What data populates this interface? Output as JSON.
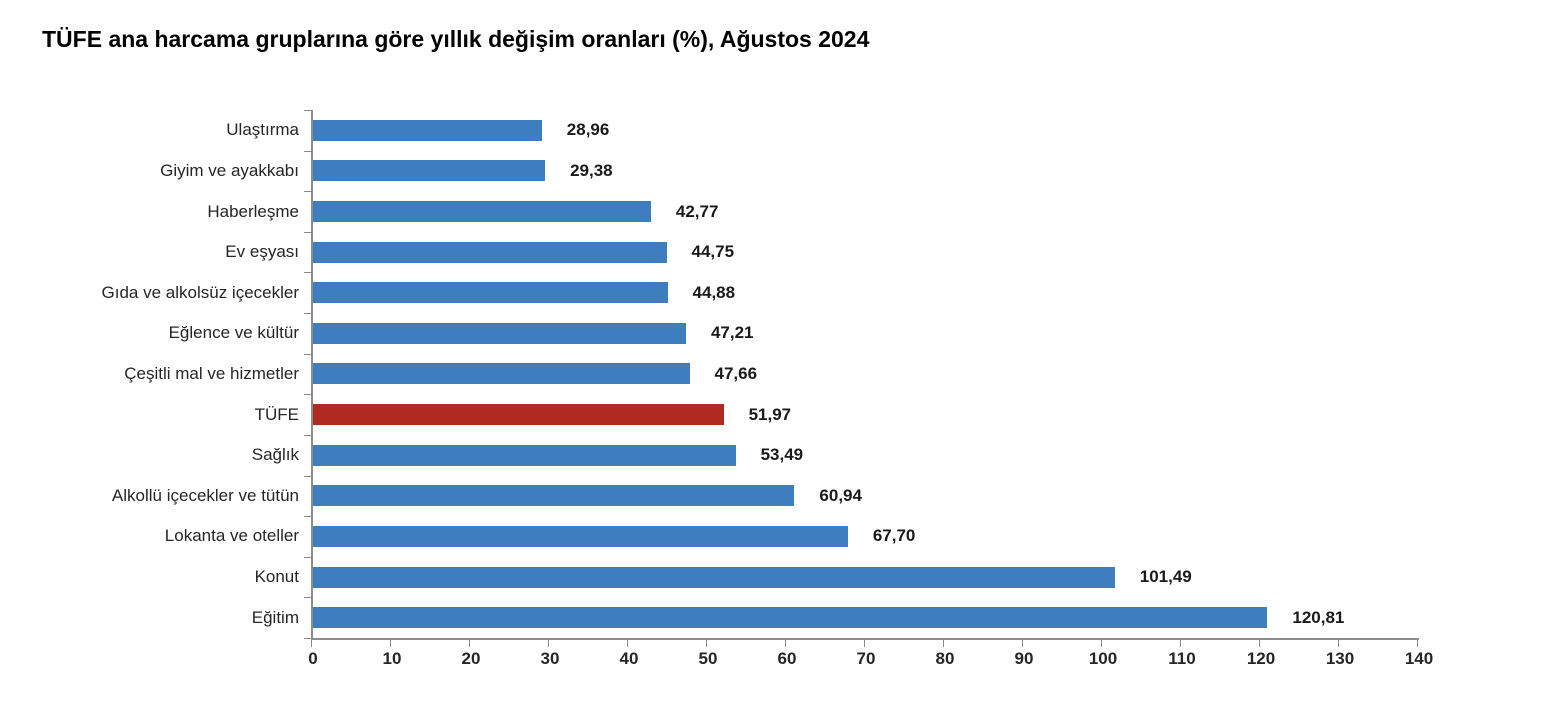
{
  "title": "TÜFE ana harcama gruplarına göre yıllık değişim oranları (%), Ağustos 2024",
  "chart_data": {
    "type": "bar",
    "orientation": "horizontal",
    "title": "TÜFE ana harcama gruplarına göre yıllık değişim oranları (%), Ağustos 2024",
    "categories": [
      "Ulaştırma",
      "Giyim ve ayakkabı",
      "Haberleşme",
      "Ev eşyası",
      "Gıda ve alkolsüz içecekler",
      "Eğlence ve kültür",
      "Çeşitli mal ve hizmetler",
      "TÜFE",
      "Sağlık",
      "Alkollü içecekler ve tütün",
      "Lokanta ve oteller",
      "Konut",
      "Eğitim"
    ],
    "values": [
      28.96,
      29.38,
      42.77,
      44.75,
      44.88,
      47.21,
      47.66,
      51.97,
      53.49,
      60.94,
      67.7,
      101.49,
      120.81
    ],
    "value_labels": [
      "28,96",
      "29,38",
      "42,77",
      "44,75",
      "44,88",
      "47,21",
      "47,66",
      "51,97",
      "53,49",
      "60,94",
      "67,70",
      "101,49",
      "120,81"
    ],
    "highlight_index": 7,
    "highlight_category": "TÜFE",
    "xlabel": "",
    "ylabel": "",
    "xlim": [
      0,
      140
    ],
    "x_ticks": [
      0,
      10,
      20,
      30,
      40,
      50,
      60,
      70,
      80,
      90,
      100,
      110,
      120,
      130,
      140
    ],
    "x_tick_labels": [
      "0",
      "10",
      "20",
      "30",
      "40",
      "50",
      "60",
      "70",
      "80",
      "90",
      "100",
      "110",
      "120",
      "130",
      "140"
    ],
    "grid": false,
    "legend": null,
    "colors": {
      "bar": "#3E7DBE",
      "highlight": "#B02A21",
      "axis": "#8C8C8C",
      "label_text": "#262626",
      "value_text": "#1A1A1A",
      "title_text": "#000000",
      "background": "#FFFFFF"
    }
  }
}
